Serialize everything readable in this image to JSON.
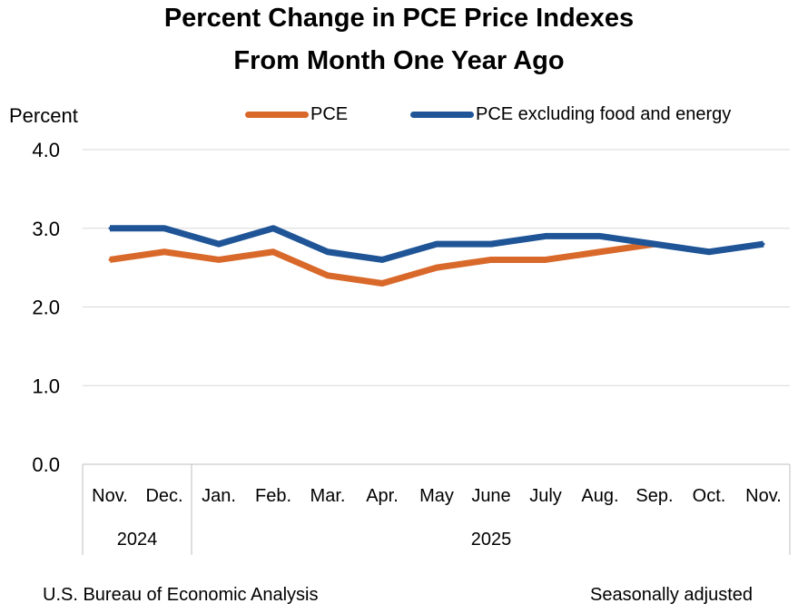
{
  "chart_data": {
    "type": "line",
    "title": "Percent Change in PCE Price Indexes",
    "subtitle": "From Month One Year Ago",
    "ylabel": "Percent",
    "ylim": [
      0,
      4
    ],
    "yticks": [
      "0.0",
      "1.0",
      "2.0",
      "3.0",
      "4.0"
    ],
    "grid": true,
    "legend_position": "top",
    "categories": [
      "Nov.",
      "Dec.",
      "Jan.",
      "Feb.",
      "Mar.",
      "Apr.",
      "May",
      "June",
      "July",
      "Aug.",
      "Sep.",
      "Oct.",
      "Nov."
    ],
    "year_groups": [
      {
        "label": "2024",
        "start": 0,
        "end": 1
      },
      {
        "label": "2025",
        "start": 2,
        "end": 12
      }
    ],
    "series": [
      {
        "name": "PCE",
        "color": "#D9692A",
        "values": [
          2.6,
          2.7,
          2.6,
          2.7,
          2.4,
          2.3,
          2.5,
          2.6,
          2.6,
          2.7,
          2.8,
          null,
          null
        ]
      },
      {
        "name": "PCE excluding food and energy",
        "color": "#1F5596",
        "values": [
          3.0,
          3.0,
          2.8,
          3.0,
          2.7,
          2.6,
          2.8,
          2.8,
          2.9,
          2.9,
          2.8,
          2.7,
          2.8
        ]
      }
    ]
  },
  "footer": {
    "source": "U.S. Bureau of Economic Analysis",
    "note": "Seasonally adjusted"
  }
}
